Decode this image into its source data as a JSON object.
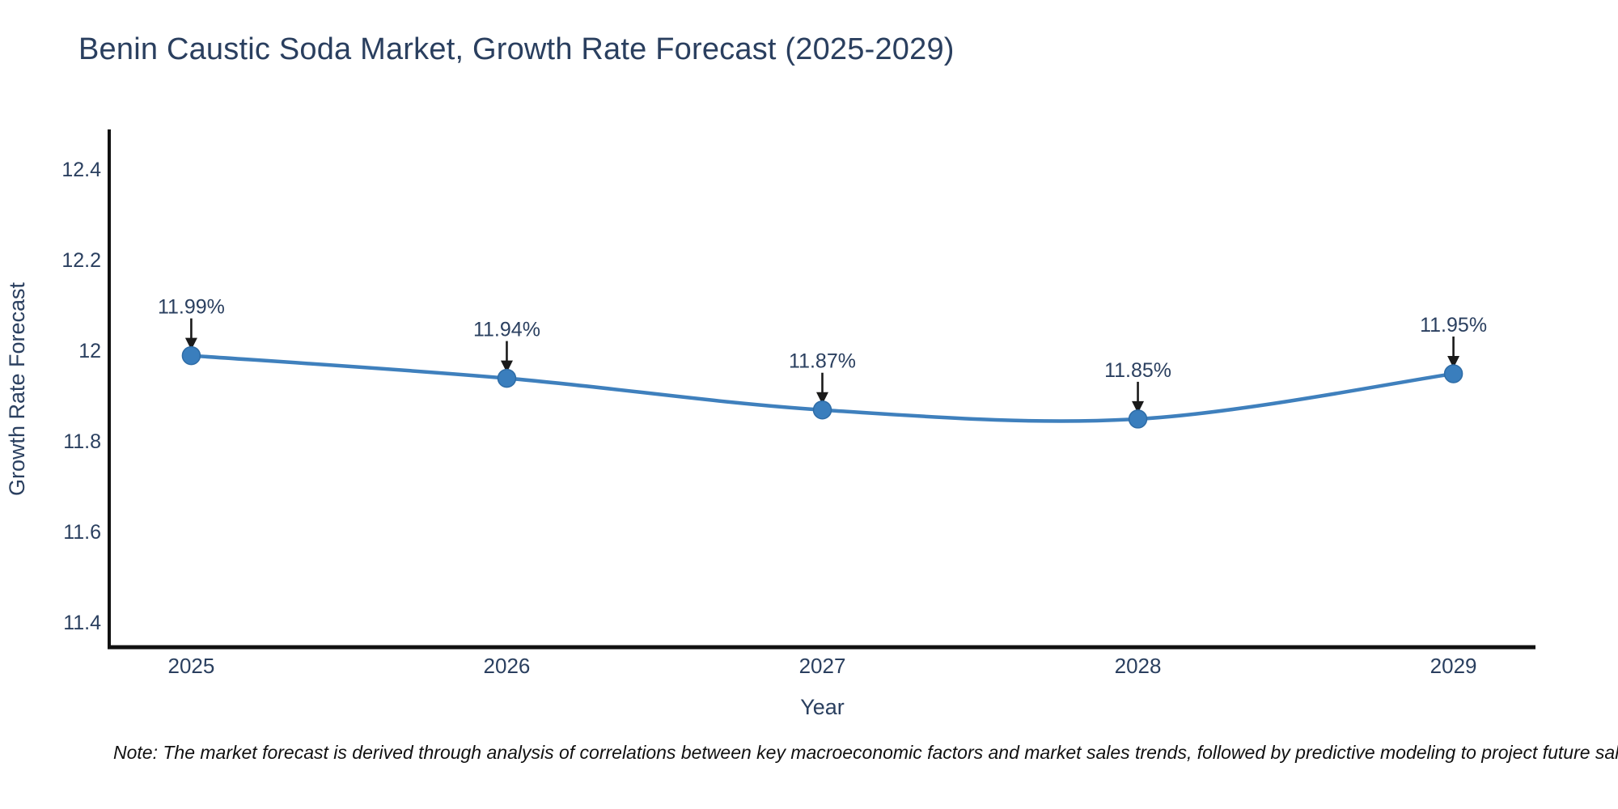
{
  "chart_data": {
    "type": "line",
    "title": "Benin Caustic Soda Market, Growth Rate Forecast (2025-2029)",
    "xlabel": "Year",
    "ylabel": "Growth Rate Forecast",
    "x": [
      2025,
      2026,
      2027,
      2028,
      2029
    ],
    "y": [
      11.99,
      11.94,
      11.87,
      11.85,
      11.95
    ],
    "point_labels": [
      "11.99%",
      "11.94%",
      "11.87%",
      "11.85%",
      "11.95%"
    ],
    "xtick_labels": [
      "2025",
      "2026",
      "2027",
      "2028",
      "2029"
    ],
    "xticks": [
      2025,
      2026,
      2027,
      2028,
      2029
    ],
    "ytick_labels": [
      "11.4",
      "11.6",
      "11.8",
      "12",
      "12.2",
      "12.4"
    ],
    "yticks": [
      11.4,
      11.6,
      11.8,
      12.0,
      12.2,
      12.4
    ],
    "xlim": [
      2024.74,
      2029.26
    ],
    "ylim": [
      11.346,
      12.486
    ],
    "line_shape": "spline",
    "grid": false,
    "legend": "none",
    "colors": {
      "line": "#3f80bd",
      "marker": "#3a7ebd",
      "marker_edge": "#2e6ca6",
      "text": "#2a3f5f",
      "axis": "#111111",
      "arrow": "#1a1a1a"
    }
  },
  "note": {
    "text": "Note: The market forecast is derived through analysis of correlations between key macroeconomic factors and market sales trends, followed by predictive modeling to project future sales."
  }
}
